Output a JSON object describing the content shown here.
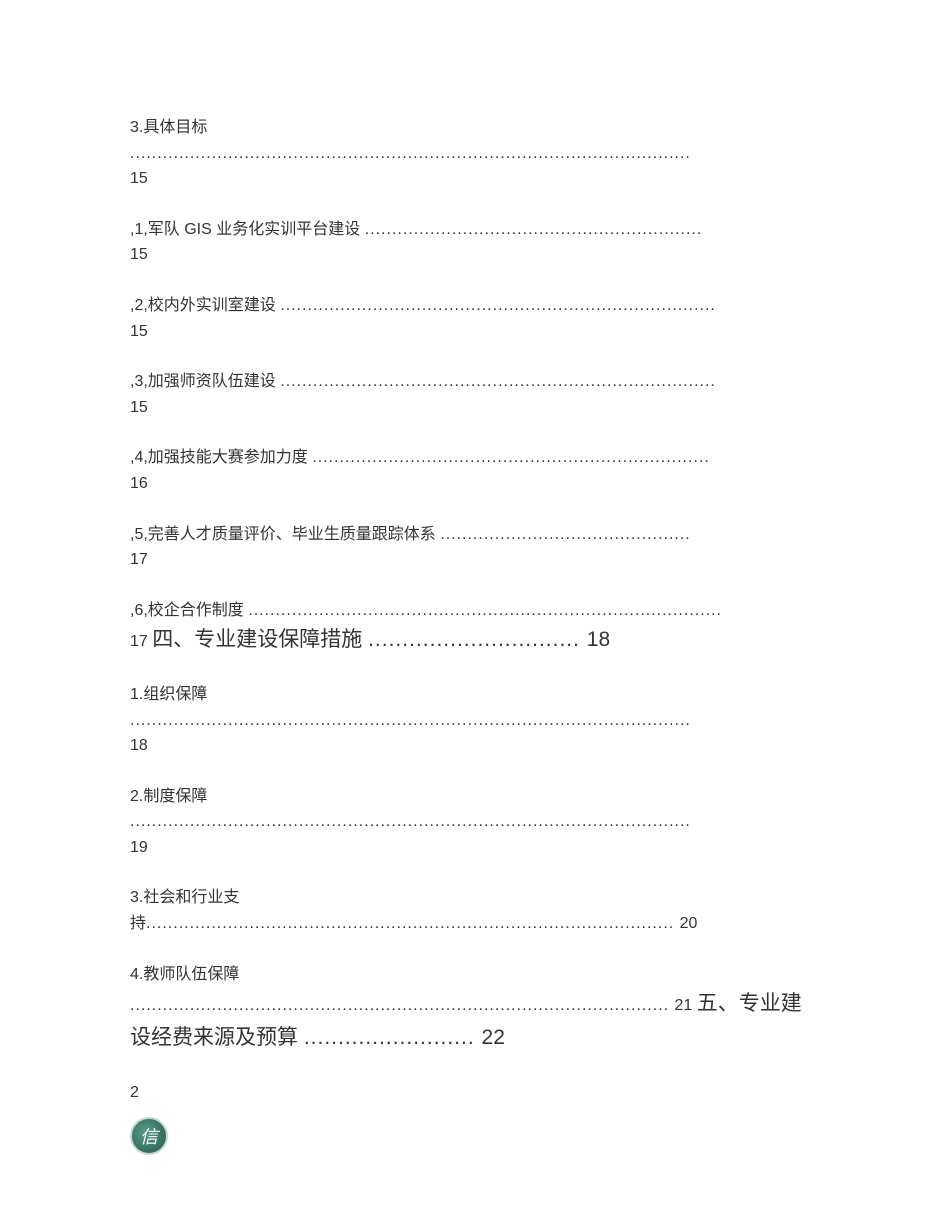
{
  "entries": [
    {
      "text": "3.具体目标",
      "dots": ".......................................................................................................",
      "page": "15",
      "wrapped": true
    },
    {
      "text": ",1,军队 GIS 业务化实训平台建设 ",
      "dots": "..............................................................",
      "page": "15",
      "wrapped": true
    },
    {
      "text": ",2,校内外实训室建设 ",
      "dots": "................................................................................",
      "page": "15",
      "wrapped": true
    },
    {
      "text": ",3,加强师资队伍建设 ",
      "dots": "................................................................................",
      "page": "15",
      "wrapped": true
    },
    {
      "text": ",4,加强技能大赛参加力度 ",
      "dots": ".........................................................................",
      "page": "16",
      "wrapped": true
    },
    {
      "text": ",5,完善人才质量评价、毕业生质量跟踪体系 ",
      "dots": "..............................................",
      "page": "17",
      "wrapped": true
    },
    {
      "text": ",6,校企合作制度 ",
      "dots": ".......................................................................................",
      "page": "17",
      "wrapped": false,
      "inline_heading": " 四、专业建设保障措施 ",
      "inline_dots": "............................... ",
      "inline_page": "18"
    },
    {
      "text": "1.组织保障",
      "dots": ".......................................................................................................",
      "page": "18",
      "wrapped": true
    },
    {
      "text": "2.制度保障",
      "dots": ".......................................................................................................",
      "page": "19",
      "wrapped": true
    },
    {
      "text": "3.社会和行业支",
      "text2": "持",
      "dots": "................................................................................................. ",
      "page": "20",
      "wrapped_prefix": true
    },
    {
      "text": "4.教师队伍保障",
      "dots": "................................................................................................... ",
      "page": "21",
      "wrapped": true,
      "inline_heading": " 五、专业建设经费来源及预算 ",
      "inline_dots": "......................... ",
      "inline_page": "22"
    }
  ],
  "page_number": "2",
  "logo_char": "信",
  "colors": {
    "text": "#333333",
    "bg": "#ffffff",
    "logo_bg": "#3d7868",
    "logo_border": "#c0d8d0"
  }
}
